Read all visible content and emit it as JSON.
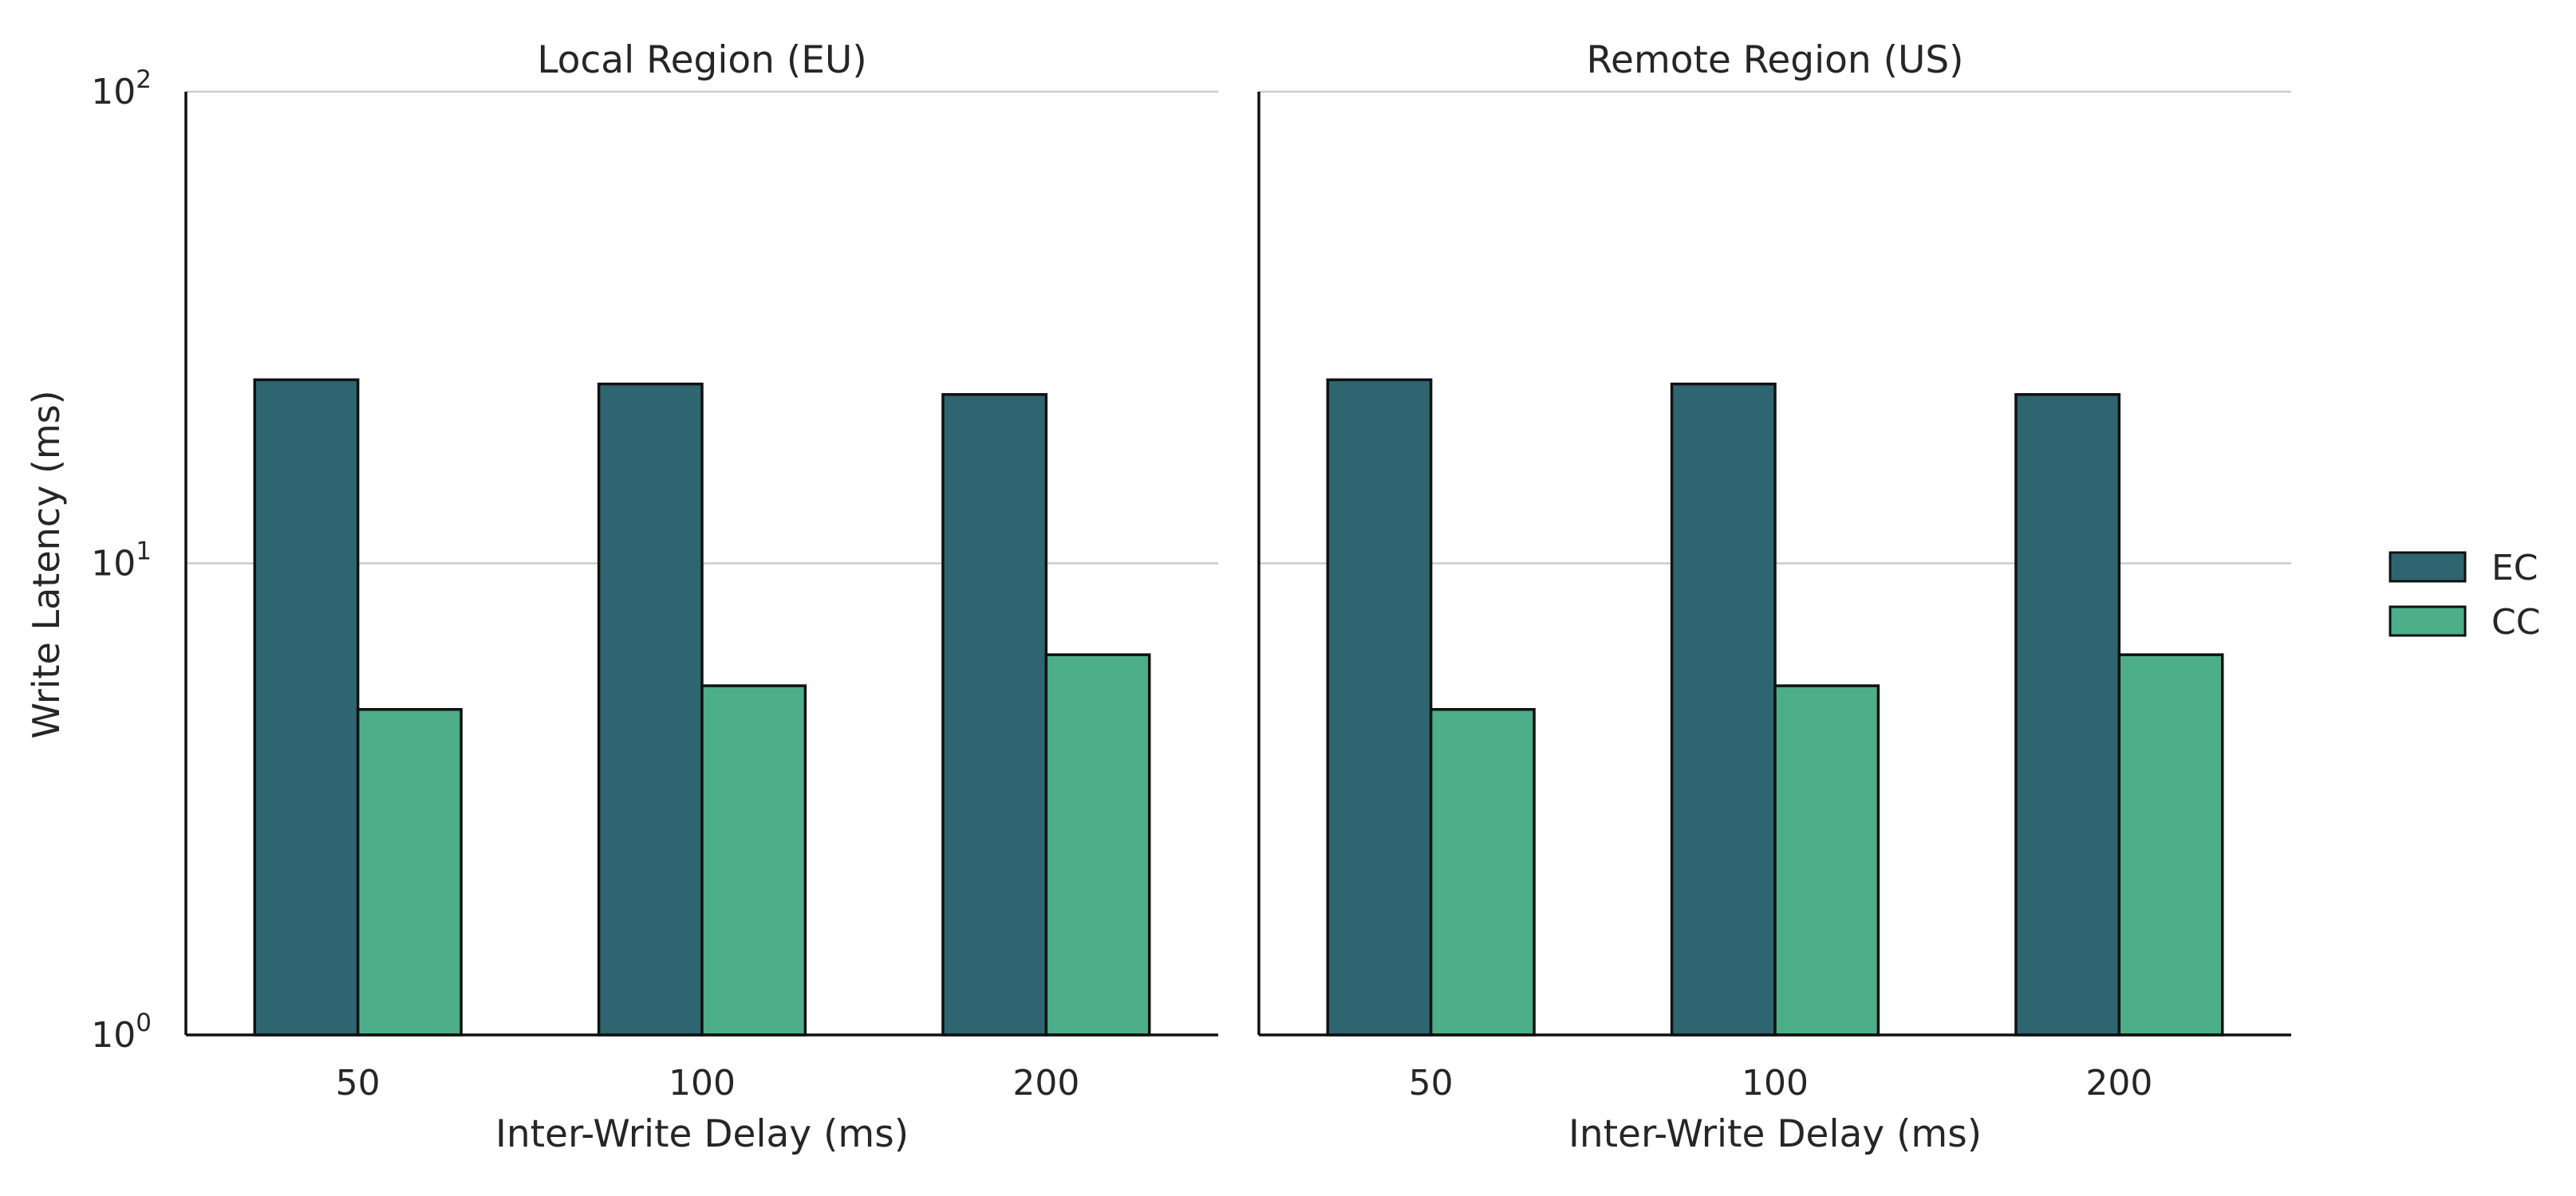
{
  "chart_data": {
    "type": "bar",
    "y_scale": "log",
    "ylim": [
      1,
      100
    ],
    "ylabel": "Write Latency (ms)",
    "y_ticks": [
      {
        "value": 1,
        "base": "10",
        "exp": "0"
      },
      {
        "value": 10,
        "base": "10",
        "exp": "1"
      },
      {
        "value": 100,
        "base": "10",
        "exp": "2"
      }
    ],
    "grid": "horizontal",
    "legend": {
      "placement": "right",
      "entries": [
        "EC",
        "CC"
      ]
    },
    "colors": {
      "EC": "#2e6570",
      "CC": "#4dae8a"
    },
    "panels": [
      {
        "title": "Local Region (EU)",
        "xlabel": "Inter-Write Delay (ms)",
        "categories": [
          "50",
          "100",
          "200"
        ],
        "series": [
          {
            "name": "EC",
            "values": [
              24.5,
              24.0,
              22.8
            ]
          },
          {
            "name": "CC",
            "values": [
              4.9,
              5.5,
              6.4
            ]
          }
        ]
      },
      {
        "title": "Remote Region (US)",
        "xlabel": "Inter-Write Delay (ms)",
        "categories": [
          "50",
          "100",
          "200"
        ],
        "series": [
          {
            "name": "EC",
            "values": [
              24.5,
              24.0,
              22.8
            ]
          },
          {
            "name": "CC",
            "values": [
              4.9,
              5.5,
              6.4
            ]
          }
        ]
      }
    ]
  }
}
